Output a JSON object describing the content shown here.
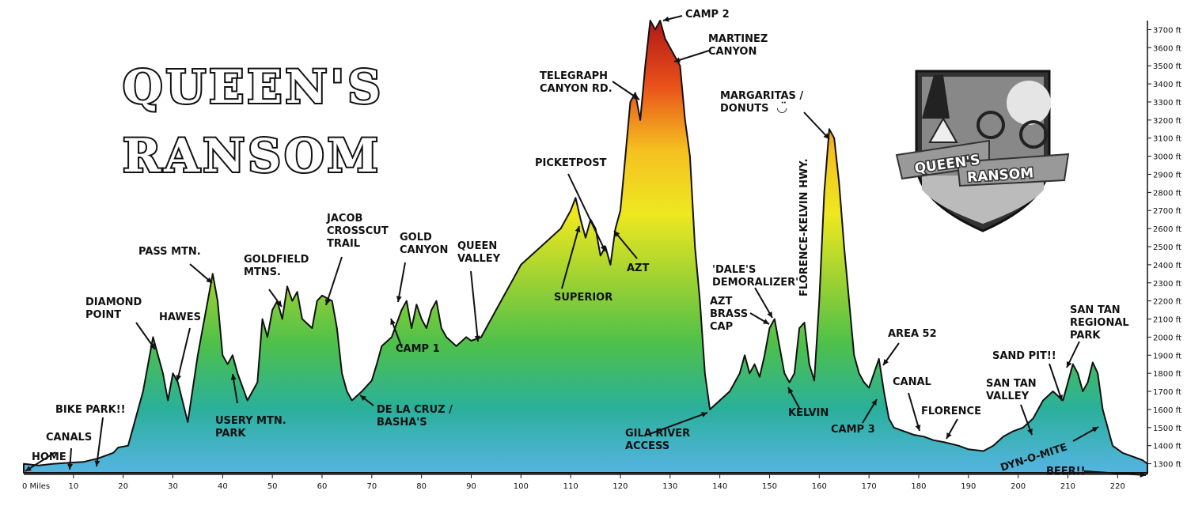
{
  "chart_data": {
    "type": "area",
    "title_lines": [
      "QUEEN'S",
      "RANSOM"
    ],
    "x_unit_label": "0 Miles",
    "x_ticks": [
      10,
      20,
      30,
      40,
      50,
      60,
      70,
      80,
      90,
      100,
      110,
      120,
      130,
      140,
      150,
      160,
      170,
      180,
      190,
      200,
      210,
      220
    ],
    "xlim": [
      0,
      226
    ],
    "ylim": [
      1250,
      3750
    ],
    "y_ticks": [
      "1300 ft",
      "1400 ft",
      "1500 ft",
      "1600 ft",
      "1700 ft",
      "1800 ft",
      "1900 ft",
      "2000 ft",
      "2100 ft",
      "2200 ft",
      "2300 ft",
      "2400 ft",
      "2500 ft",
      "2600 ft",
      "2700 ft",
      "2800 ft",
      "2900 ft",
      "3000 ft",
      "3100 ft",
      "3200 ft",
      "3300 ft",
      "3400 ft",
      "3500 ft",
      "3600 ft",
      "3700 ft"
    ],
    "series": [
      {
        "x": [
          0,
          3,
          6,
          9,
          12,
          15,
          18,
          19,
          21,
          22,
          24,
          26,
          27,
          28,
          29,
          30,
          31,
          33,
          35,
          37,
          38,
          39,
          40,
          41,
          42,
          43,
          45,
          47,
          48,
          49,
          50,
          51,
          52,
          53,
          54,
          55,
          56,
          58,
          59,
          60,
          62,
          63,
          64,
          65,
          66,
          68,
          70,
          71,
          72,
          74,
          76,
          77,
          78,
          79,
          80,
          81,
          82,
          83,
          84,
          85,
          87,
          89,
          90,
          92,
          94,
          96,
          98,
          100,
          102,
          104,
          106,
          108,
          110,
          111,
          112,
          113,
          114,
          115,
          116,
          117,
          118,
          119,
          120,
          121,
          122,
          123,
          124,
          125,
          126,
          127,
          128,
          129,
          130,
          131,
          132,
          133,
          134,
          135,
          136,
          137,
          138,
          140,
          142,
          143,
          144,
          145,
          146,
          147,
          148,
          149,
          150,
          151,
          152,
          153,
          154,
          155,
          156,
          157,
          158,
          159,
          160,
          161,
          162,
          163,
          164,
          165,
          166,
          167,
          168,
          169,
          170,
          171,
          172,
          173,
          174,
          175,
          177,
          179,
          181,
          183,
          185,
          188,
          190,
          193,
          195,
          197,
          199,
          201,
          203,
          205,
          207,
          209,
          210,
          211,
          212,
          213,
          214,
          215,
          216,
          217,
          219,
          221,
          223,
          225,
          226
        ],
        "y": [
          1300,
          1290,
          1300,
          1305,
          1310,
          1330,
          1360,
          1390,
          1400,
          1500,
          1700,
          2000,
          1900,
          1800,
          1650,
          1800,
          1750,
          1530,
          1900,
          2200,
          2350,
          2200,
          1900,
          1850,
          1900,
          1800,
          1650,
          1750,
          2100,
          2000,
          2150,
          2200,
          2100,
          2280,
          2200,
          2250,
          2100,
          2050,
          2200,
          2230,
          2200,
          2050,
          1800,
          1700,
          1650,
          1700,
          1760,
          1850,
          1950,
          2000,
          2150,
          2200,
          2050,
          2180,
          2100,
          2050,
          2150,
          2200,
          2050,
          2000,
          1950,
          2000,
          1980,
          2000,
          2100,
          2200,
          2300,
          2400,
          2450,
          2500,
          2550,
          2600,
          2700,
          2770,
          2650,
          2550,
          2650,
          2600,
          2450,
          2500,
          2400,
          2600,
          2700,
          3000,
          3300,
          3350,
          3200,
          3500,
          3750,
          3700,
          3750,
          3650,
          3600,
          3550,
          3500,
          3200,
          3000,
          2500,
          2200,
          1800,
          1600,
          1650,
          1700,
          1750,
          1800,
          1900,
          1800,
          1850,
          1780,
          1900,
          2050,
          2100,
          1950,
          1800,
          1750,
          1800,
          2050,
          2080,
          1850,
          1760,
          2200,
          2800,
          3150,
          3100,
          2850,
          2500,
          2200,
          1900,
          1800,
          1750,
          1720,
          1800,
          1880,
          1700,
          1550,
          1500,
          1480,
          1460,
          1450,
          1430,
          1420,
          1400,
          1380,
          1370,
          1400,
          1450,
          1480,
          1500,
          1550,
          1650,
          1700,
          1650,
          1750,
          1850,
          1800,
          1700,
          1750,
          1860,
          1800,
          1600,
          1400,
          1360,
          1340,
          1320,
          1300
        ]
      }
    ],
    "annotations": [
      {
        "lines": [
          "HOME"
        ],
        "mile": 0
      },
      {
        "lines": [
          "CANALS"
        ],
        "mile": 9
      },
      {
        "lines": [
          "BIKE PARK!!"
        ],
        "mile": 15
      },
      {
        "lines": [
          "DIAMOND",
          "POINT"
        ],
        "mile": 27
      },
      {
        "lines": [
          "HAWES"
        ],
        "mile": 31
      },
      {
        "lines": [
          "PASS MTN."
        ],
        "mile": 38
      },
      {
        "lines": [
          "USERY MTN.",
          "PARK"
        ],
        "mile": 43
      },
      {
        "lines": [
          "GOLDFIELD",
          "MTNS."
        ],
        "mile": 53
      },
      {
        "lines": [
          "JACOB",
          "CROSSCUT",
          "TRAIL"
        ],
        "mile": 62
      },
      {
        "lines": [
          "DE LA CRUZ /",
          "BASHA'S"
        ],
        "mile": 69
      },
      {
        "lines": [
          "GOLD",
          "CANYON"
        ],
        "mile": 77
      },
      {
        "lines": [
          "CAMP 1"
        ],
        "mile": 78
      },
      {
        "lines": [
          "QUEEN",
          "VALLEY"
        ],
        "mile": 92
      },
      {
        "lines": [
          "SUPERIOR"
        ],
        "mile": 110
      },
      {
        "lines": [
          "PICKETPOST"
        ],
        "mile": 118
      },
      {
        "lines": [
          "TELEGRAPH",
          "CANYON RD."
        ],
        "mile": 124
      },
      {
        "lines": [
          "CAMP 2"
        ],
        "mile": 128
      },
      {
        "lines": [
          "MARTINEZ",
          "CANYON"
        ],
        "mile": 131
      },
      {
        "lines": [
          "AZT"
        ],
        "mile": 132
      },
      {
        "lines": [
          "GILA RIVER",
          "ACCESS"
        ],
        "mile": 138
      },
      {
        "lines": [
          "AZT",
          "BRASS",
          "CAP"
        ],
        "mile": 151
      },
      {
        "lines": [
          "'DALE'S",
          "DEMORALIZER'"
        ],
        "mile": 152
      },
      {
        "lines": [
          "KELVIN"
        ],
        "mile": 155
      },
      {
        "lines": [
          "FLORENCE-KELVIN HWY."
        ],
        "mile": 159
      },
      {
        "lines": [
          "MARGARITAS /",
          "DONUTS"
        ],
        "mile": 162
      },
      {
        "lines": [
          "CAMP 3"
        ],
        "mile": 171
      },
      {
        "lines": [
          "AREA 52"
        ],
        "mile": 172
      },
      {
        "lines": [
          "CANAL"
        ],
        "mile": 180
      },
      {
        "lines": [
          "FLORENCE"
        ],
        "mile": 185
      },
      {
        "lines": [
          "SAN TAN",
          "VALLEY"
        ],
        "mile": 203
      },
      {
        "lines": [
          "SAND PIT!!"
        ],
        "mile": 208
      },
      {
        "lines": [
          "SAN TAN",
          "REGIONAL",
          "PARK"
        ],
        "mile": 214
      },
      {
        "lines": [
          "DYN-O-MITE"
        ],
        "mile": 215
      },
      {
        "lines": [
          "BEER!!"
        ],
        "mile": 226
      }
    ],
    "legend": "none",
    "grid": false,
    "gradient_colors": [
      "#b01818",
      "#e8501a",
      "#f5c020",
      "#eee820",
      "#9ed232",
      "#4ec04a",
      "#2ab09a",
      "#55b4e2"
    ]
  },
  "logo": {
    "lines": [
      "QUEEN'S",
      "RANSOM"
    ]
  },
  "smiley": "◡̈"
}
